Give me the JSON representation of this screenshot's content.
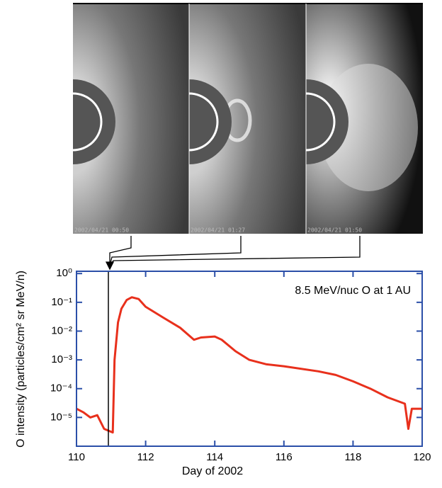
{
  "panels": [
    {
      "timestamp": "2002/04/21 00:50"
    },
    {
      "timestamp": "2002/04/21 01:27"
    },
    {
      "timestamp": "2002/04/21 01:50"
    }
  ],
  "chart_data": {
    "type": "line",
    "yscale": "log",
    "annotation": "8.5 MeV/nuc O at 1 AU",
    "xlabel": "Day of 2002",
    "ylabel": "O intensity (particles/cm² sr MeV/n)",
    "x": [
      110.0,
      110.2,
      110.4,
      110.6,
      110.8,
      111.05,
      111.1,
      111.2,
      111.3,
      111.45,
      111.6,
      111.8,
      112.0,
      112.5,
      113.0,
      113.4,
      113.6,
      114.0,
      114.2,
      114.6,
      115.0,
      115.5,
      116.0,
      117.0,
      117.5,
      118.0,
      118.5,
      119.0,
      119.5,
      119.6,
      119.7,
      120.0
    ],
    "values": [
      2e-05,
      1.5e-05,
      1e-05,
      1.2e-05,
      4e-06,
      3e-06,
      0.001,
      0.02,
      0.06,
      0.12,
      0.15,
      0.13,
      0.07,
      0.03,
      0.013,
      0.005,
      0.006,
      0.0065,
      0.005,
      0.002,
      0.001,
      0.0007,
      0.0006,
      0.0004,
      0.0003,
      0.00018,
      0.0001,
      5e-05,
      3e-05,
      4e-06,
      2e-05,
      2e-05
    ],
    "color": "#e8301c",
    "axis_color": "#2b4fa8",
    "xlim": [
      110,
      120
    ],
    "xticks": [
      110,
      112,
      114,
      116,
      118,
      120
    ],
    "ylim": [
      1e-06,
      1.2
    ],
    "yticks": [
      {
        "value": 1,
        "label": "10⁰"
      },
      {
        "value": 0.1,
        "label": "10⁻¹"
      },
      {
        "value": 0.01,
        "label": "10⁻²"
      },
      {
        "value": 0.001,
        "label": "10⁻³"
      },
      {
        "value": 0.0001,
        "label": "10⁻⁴"
      },
      {
        "value": 1e-05,
        "label": "10⁻⁵"
      }
    ]
  }
}
